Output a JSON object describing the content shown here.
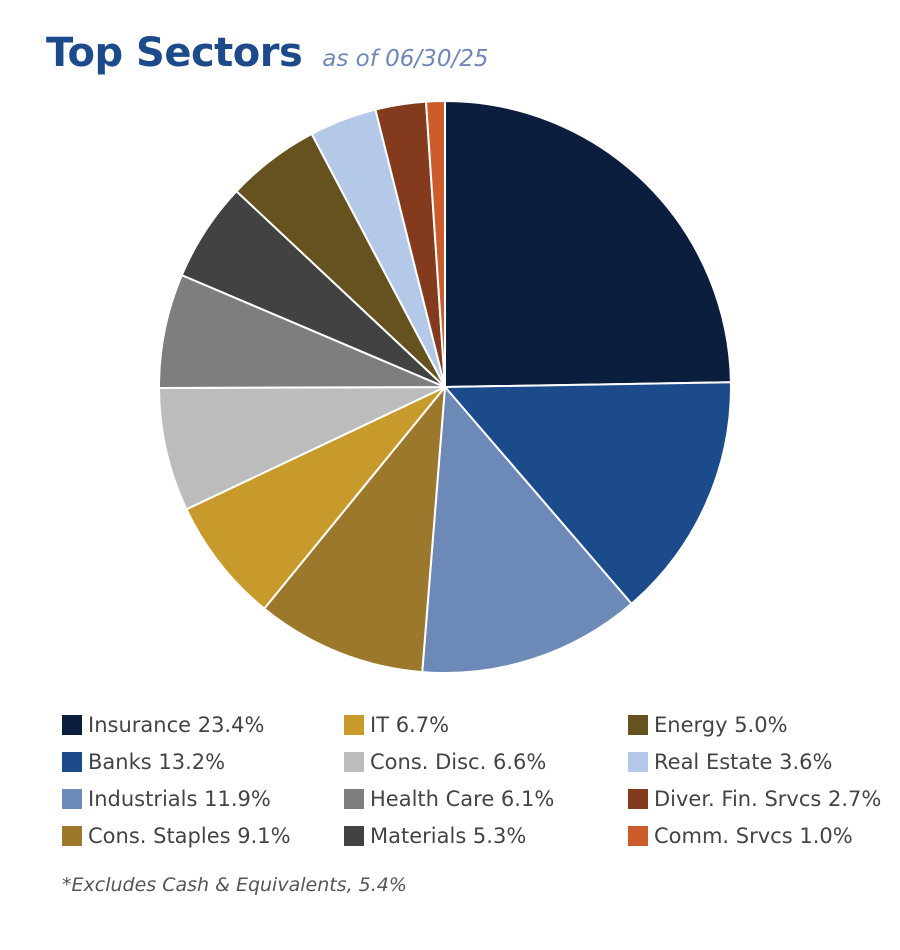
{
  "header": {
    "title": "Top Sectors",
    "subtitle": "as of 06/30/25"
  },
  "chart_data": {
    "type": "pie",
    "title": "Top Sectors",
    "subtitle": "as of 06/30/25",
    "start": "12 o'clock",
    "direction": "clockwise",
    "legend_position": "bottom",
    "categories": [
      "Insurance",
      "Banks",
      "Industrials",
      "Cons. Staples",
      "IT",
      "Cons. Disc.",
      "Health Care",
      "Materials",
      "Energy",
      "Real Estate",
      "Diver. Fin. Srvcs",
      "Comm. Srvcs"
    ],
    "values": [
      23.4,
      13.2,
      11.9,
      9.1,
      6.7,
      6.6,
      6.1,
      5.3,
      5.0,
      3.6,
      2.7,
      1.0
    ],
    "colors": [
      "#0c1e3e",
      "#1c4b8c",
      "#6c89b8",
      "#9c782c",
      "#c89a2c",
      "#bcbcbc",
      "#7e7e7e",
      "#424242",
      "#66521f",
      "#b4c8e8",
      "#843a1c",
      "#cc5c2c"
    ],
    "legend": [
      "Insurance 23.4%",
      "Banks 13.2%",
      "Industrials 11.9%",
      "Cons. Staples 9.1%",
      "IT 6.7%",
      "Cons. Disc. 6.6%",
      "Health Care 6.1%",
      "Materials 5.3%",
      "Energy 5.0%",
      "Real Estate 3.6%",
      "Diver. Fin. Srvcs 2.7%",
      "Comm. Srvcs 1.0%"
    ],
    "footnote": "*Excludes Cash & Equivalents, 5.4%"
  }
}
